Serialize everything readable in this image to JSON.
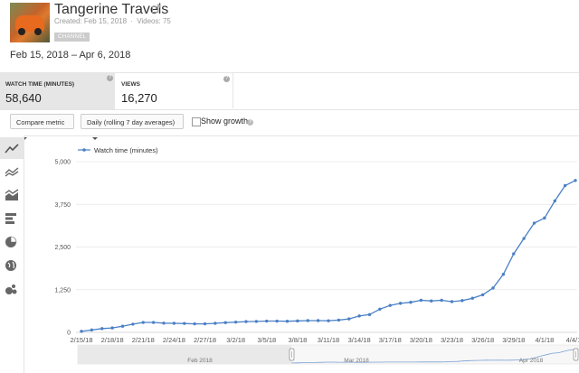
{
  "channel": {
    "title": "Tangerine Travels",
    "created": "Created: Feb 15, 2018",
    "videos": "Videos: 75",
    "badge": "CHANNEL"
  },
  "date_range": "Feb 15, 2018 – Apr 6, 2018",
  "metrics": [
    {
      "label": "WATCH TIME (MINUTES)",
      "value": "58,640",
      "selected": true
    },
    {
      "label": "VIEWS",
      "value": "16,270",
      "selected": false
    }
  ],
  "controls": {
    "compare_metric": "Compare metric",
    "granularity": "Daily (rolling 7 day averages)",
    "show_growth": "Show growth"
  },
  "sidebar_icons": [
    "line-chart-icon",
    "multi-line-chart-icon",
    "stacked-area-chart-icon",
    "bar-chart-icon",
    "pie-chart-icon",
    "globe-map-icon",
    "bubble-chart-icon"
  ],
  "chart_data": {
    "type": "line",
    "series": [
      {
        "name": "Watch time (minutes)",
        "color": "#4a80c5",
        "values": [
          30,
          70,
          110,
          130,
          180,
          240,
          290,
          290,
          270,
          265,
          260,
          250,
          250,
          265,
          285,
          300,
          315,
          320,
          330,
          330,
          325,
          335,
          345,
          345,
          340,
          360,
          395,
          480,
          520,
          680,
          790,
          850,
          880,
          940,
          920,
          940,
          900,
          930,
          1000,
          1100,
          1300,
          1700,
          2300,
          2750,
          3200,
          3350,
          3850,
          4300,
          4450
        ]
      }
    ],
    "x_tick_labels": [
      "2/15/18",
      "2/18/18",
      "2/21/18",
      "2/24/18",
      "2/27/18",
      "3/2/18",
      "3/5/18",
      "3/8/18",
      "3/11/18",
      "3/14/18",
      "3/17/18",
      "3/20/18",
      "3/23/18",
      "3/26/18",
      "3/29/18",
      "4/1/18",
      "4/4/18"
    ],
    "y_ticks": [
      "0",
      "1,250",
      "2,500",
      "3,750",
      "5,000"
    ],
    "ylim": [
      0,
      5000
    ],
    "grid": true,
    "legend": "top-left",
    "navigator": {
      "month_labels": [
        "Feb 2018",
        "Mar 2018",
        "Apr 2018"
      ]
    }
  }
}
